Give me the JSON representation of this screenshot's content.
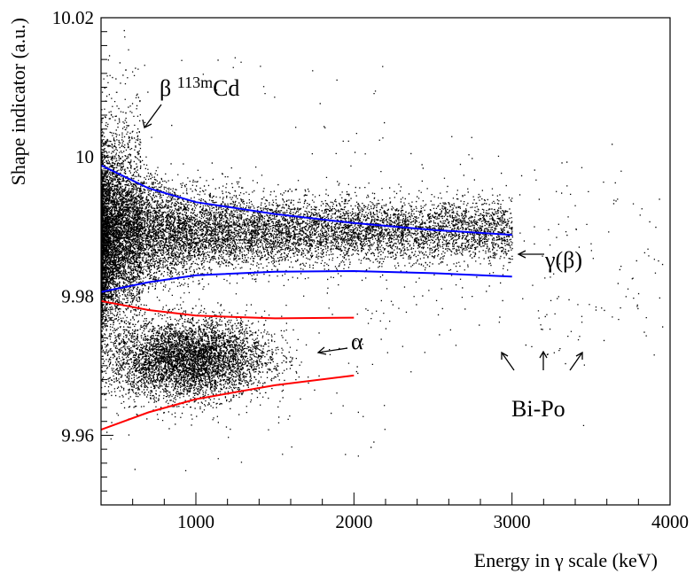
{
  "chart_data": {
    "type": "scatter",
    "xlabel": "Energy in γ scale (keV)",
    "ylabel": "Shape indicator (a.u.)",
    "xlim": [
      400,
      4000
    ],
    "ylim": [
      9.95,
      10.02
    ],
    "x_ticks": [
      {
        "value": 1000,
        "label": "1000"
      },
      {
        "value": 2000,
        "label": "2000"
      },
      {
        "value": 3000,
        "label": "3000"
      },
      {
        "value": 4000,
        "label": "4000"
      }
    ],
    "y_ticks": [
      {
        "value": 9.96,
        "label": "9.96"
      },
      {
        "value": 9.98,
        "label": "9.98"
      },
      {
        "value": 10.0,
        "label": "10"
      },
      {
        "value": 10.02,
        "label": "10.02"
      }
    ],
    "grid": false,
    "populations": [
      {
        "name": "γ(β)",
        "x_range": [
          400,
          3000
        ],
        "center_y": 9.99,
        "approx_points": 22000
      },
      {
        "name": "α",
        "x_range": [
          600,
          1900
        ],
        "center_y": 9.971,
        "approx_points": 7000
      },
      {
        "name": "Bi-Po",
        "x_range": [
          2000,
          3950
        ],
        "center_y": 9.985,
        "approx_points": 250
      }
    ],
    "boundary_curves": [
      {
        "color": "#0000ff",
        "points": [
          [
            400,
            9.9988
          ],
          [
            700,
            9.9955
          ],
          [
            1000,
            9.9935
          ],
          [
            1500,
            9.9918
          ],
          [
            2000,
            9.9905
          ],
          [
            2500,
            9.9895
          ],
          [
            3000,
            9.9888
          ]
        ]
      },
      {
        "color": "#0000ff",
        "points": [
          [
            400,
            9.9806
          ],
          [
            700,
            9.982
          ],
          [
            1000,
            9.983
          ],
          [
            1500,
            9.9835
          ],
          [
            2000,
            9.9836
          ],
          [
            2500,
            9.9833
          ],
          [
            3000,
            9.9828
          ]
        ]
      },
      {
        "color": "#ff0000",
        "points": [
          [
            400,
            9.9793
          ],
          [
            700,
            9.978
          ],
          [
            1000,
            9.9772
          ],
          [
            1500,
            9.9768
          ],
          [
            2000,
            9.9769
          ]
        ]
      },
      {
        "color": "#ff0000",
        "points": [
          [
            400,
            9.9608
          ],
          [
            700,
            9.9633
          ],
          [
            1000,
            9.9652
          ],
          [
            1500,
            9.9672
          ],
          [
            2000,
            9.9686
          ]
        ]
      }
    ],
    "annotations": [
      {
        "id": "beta",
        "text_parts": [
          "β ",
          "113m",
          "Cd"
        ]
      },
      {
        "id": "gamma",
        "text": "γ(β)"
      },
      {
        "id": "alpha",
        "text": "α"
      },
      {
        "id": "bipo",
        "text": "Bi-Po"
      }
    ]
  }
}
